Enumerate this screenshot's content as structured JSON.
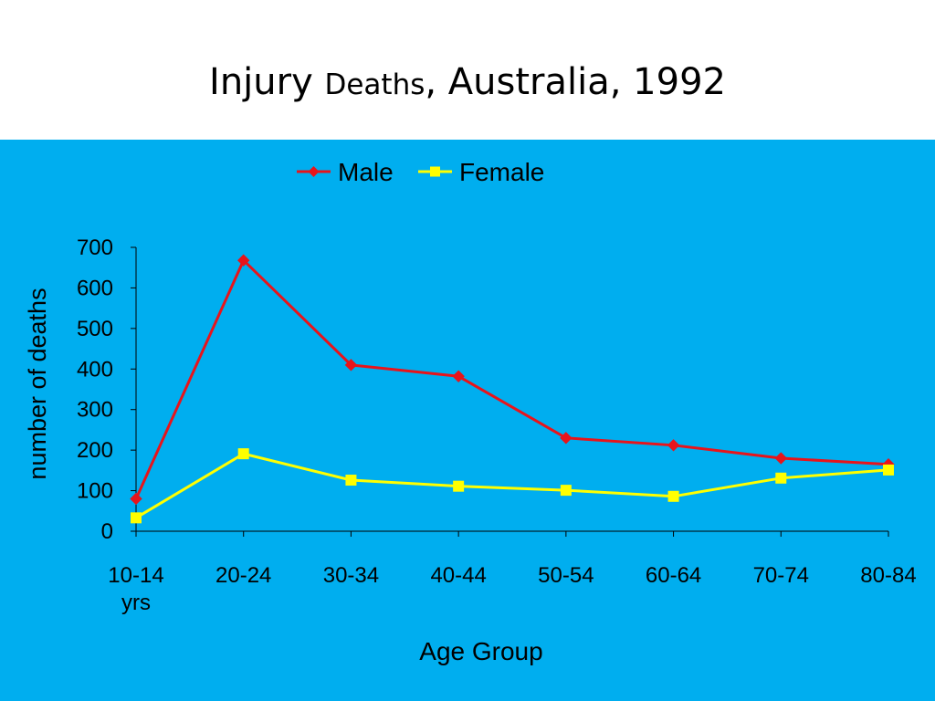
{
  "slide": {
    "title_part1": "Injury ",
    "title_part2": "Deaths",
    "title_part3": ", Australia, 1992"
  },
  "colors": {
    "background": "#00aeef",
    "male": "#e8141b",
    "female": "#ffff00",
    "axis": "#000000"
  },
  "chart_data": {
    "type": "line",
    "title": "Injury Deaths, Australia, 1992",
    "xlabel": "Age Group",
    "ylabel": "number of deaths",
    "categories": [
      "10-14 yrs",
      "20-24",
      "30-34",
      "40-44",
      "50-54",
      "60-64",
      "70-74",
      "80-84"
    ],
    "category_lines": [
      [
        "10-14",
        "yrs"
      ],
      [
        "20-24"
      ],
      [
        "30-34"
      ],
      [
        "40-44"
      ],
      [
        "50-54"
      ],
      [
        "60-64"
      ],
      [
        "70-74"
      ],
      [
        "80-84"
      ]
    ],
    "ylim": [
      0,
      700
    ],
    "yticks": [
      0,
      100,
      200,
      300,
      400,
      500,
      600,
      700
    ],
    "grid": false,
    "legend_position": "top-center",
    "series": [
      {
        "name": "Male",
        "marker": "diamond",
        "values": [
          80,
          668,
          410,
          382,
          230,
          212,
          180,
          165
        ]
      },
      {
        "name": "Female",
        "marker": "square",
        "values": [
          33,
          191,
          126,
          111,
          101,
          86,
          131,
          151
        ]
      }
    ]
  }
}
